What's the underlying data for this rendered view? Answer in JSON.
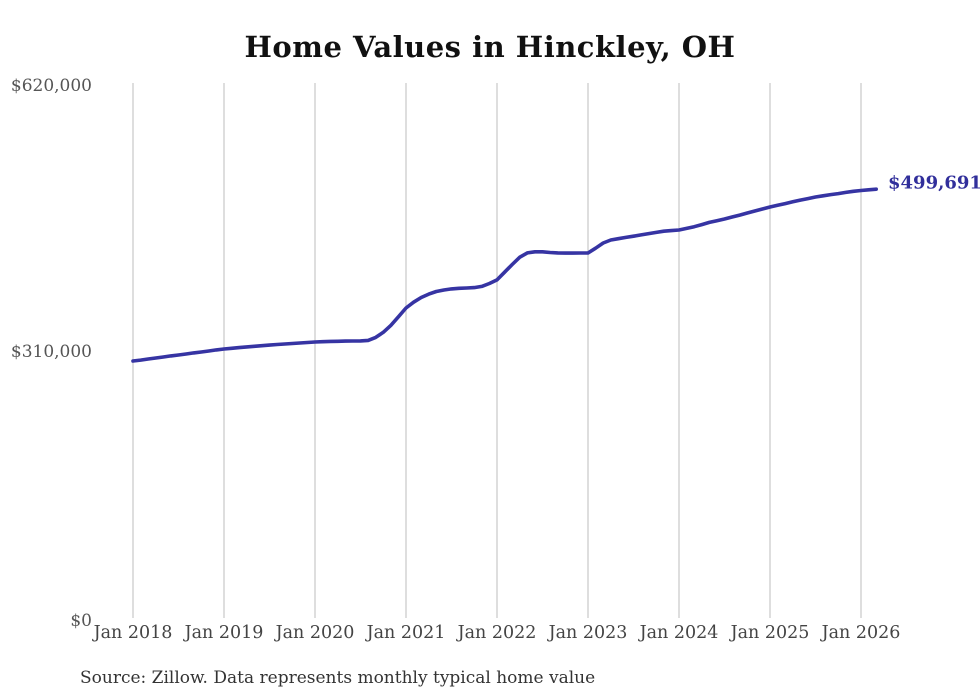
{
  "chart_data": {
    "type": "line",
    "title": "Home Values in Hinckley, OH",
    "series_name": "Monthly typical home value",
    "start_month": "2018-01",
    "frequency": "monthly",
    "values": [
      299500,
      300600,
      301800,
      303000,
      304200,
      305400,
      306500,
      307700,
      308900,
      310000,
      311200,
      312400,
      313500,
      314300,
      315100,
      315900,
      316600,
      317300,
      318000,
      318700,
      319300,
      319900,
      320500,
      321100,
      321700,
      322000,
      322300,
      322500,
      322700,
      322800,
      322900,
      323500,
      327000,
      333000,
      341000,
      351000,
      361300,
      368000,
      373500,
      377500,
      380500,
      382300,
      383500,
      384200,
      384600,
      385000,
      386500,
      389800,
      394000,
      403000,
      412000,
      420500,
      425500,
      426800,
      426800,
      426000,
      425500,
      425300,
      425300,
      425400,
      425400,
      431000,
      437000,
      440500,
      442000,
      443500,
      445000,
      446500,
      448000,
      449400,
      450800,
      451500,
      452200,
      454000,
      456000,
      458500,
      461000,
      463000,
      465000,
      467300,
      469600,
      472000,
      474300,
      476600,
      479000,
      481000,
      483000,
      485000,
      487000,
      488800,
      490600,
      492000,
      493400,
      494600,
      496000,
      497300,
      498200,
      499000,
      499691
    ],
    "end_label": "$499,691",
    "x_tick_labels": [
      "Jan 2018",
      "Jan 2019",
      "Jan 2020",
      "Jan 2021",
      "Jan 2022",
      "Jan 2023",
      "Jan 2024",
      "Jan 2025",
      "Jan 2026"
    ],
    "y_tick_labels": [
      "$0",
      "$310,000",
      "$620,000"
    ],
    "y_tick_values": [
      0,
      310000,
      620000
    ],
    "ylim": [
      0,
      620000
    ],
    "grid": "vertical-only",
    "legend": "none",
    "line_color": "#3634a3",
    "end_label_color": "#312f9b",
    "gridline_color": "#c9c9c9",
    "axis_text_color": "#555555",
    "source_note": "Source: Zillow. Data represents monthly typical home value"
  }
}
